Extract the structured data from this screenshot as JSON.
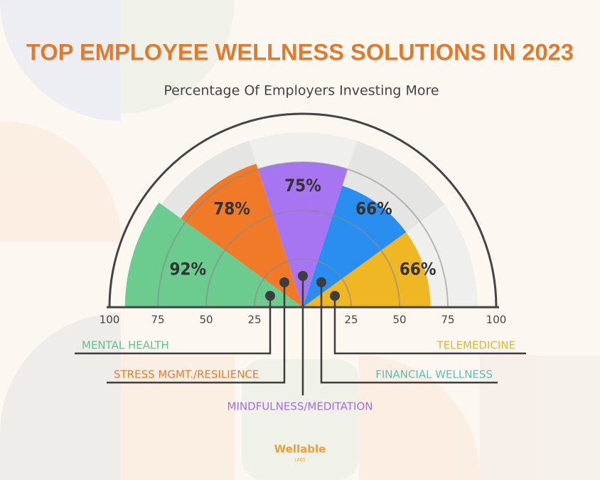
{
  "chart_data": {
    "type": "radial_bar",
    "title": "TOP EMPLOYEE WELLNESS SOLUTIONS IN 2023",
    "subtitle": "Percentage Of Employers Investing More",
    "categories": [
      "MENTAL HEALTH",
      "STRESS MGMT./RESILIENCE",
      "MINDFULNESS/MEDITATION",
      "FINANCIAL WELLNESS",
      "TELEMEDICINE"
    ],
    "values": [
      92,
      78,
      75,
      66,
      66
    ],
    "value_labels": [
      "92%",
      "78%",
      "75%",
      "66%",
      "66%"
    ],
    "colors": [
      "#6ccb8f",
      "#f07a28",
      "#a774f2",
      "#2a8ef0",
      "#f0b725"
    ],
    "label_colors": [
      "#5fc48a",
      "#ea7a2e",
      "#a46cf0",
      "#5cc0b5",
      "#e5b52a"
    ],
    "rlim": [
      0,
      100
    ],
    "rticks": [
      25,
      50,
      75,
      100
    ],
    "grid": true
  },
  "logo": {
    "name": "Wellable",
    "tagline": "LABS"
  }
}
